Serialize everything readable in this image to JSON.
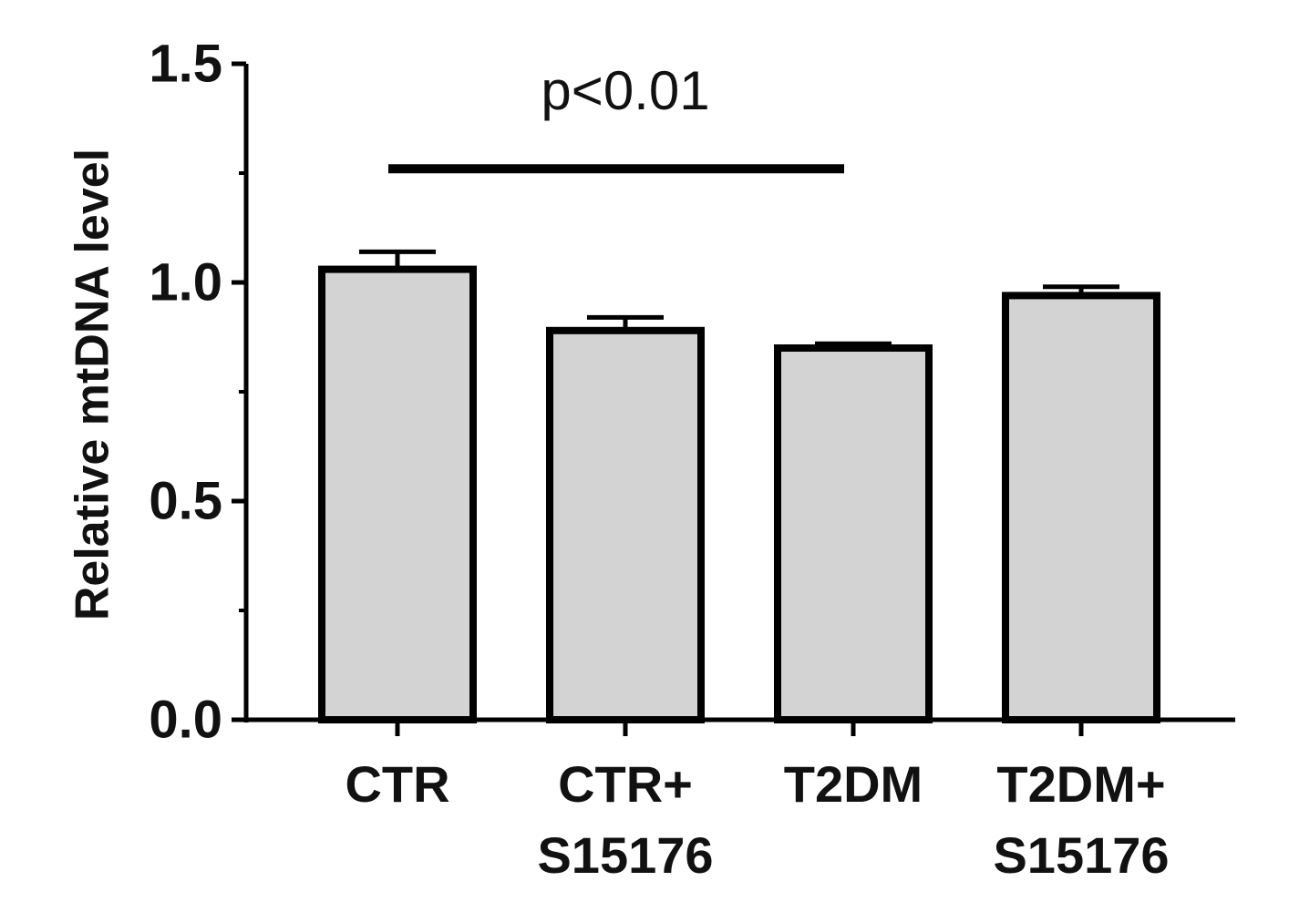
{
  "chart_data": {
    "type": "bar",
    "categories": [
      [
        "CTR"
      ],
      [
        "CTR+",
        "S15176"
      ],
      [
        "T2DM"
      ],
      [
        "T2DM+",
        "S15176"
      ]
    ],
    "values": [
      1.03,
      0.89,
      0.85,
      0.97
    ],
    "errors": [
      0.04,
      0.03,
      0.01,
      0.02
    ],
    "ylabel": "Relative mtDNA level",
    "xlabel": "",
    "ylim": [
      0,
      1.5
    ],
    "yticks": [
      "0.0",
      "0.5",
      "1.0",
      "1.5"
    ],
    "ytick_values": [
      0,
      0.5,
      1.0,
      1.5
    ],
    "minor_tick_step": 0.25,
    "grid": false,
    "bar_fill": "#d3d3d3",
    "bar_stroke": "#000000",
    "annotation": {
      "text": "p<0.01",
      "from_index": 0,
      "to_index": 2,
      "y_value": 1.26
    }
  }
}
